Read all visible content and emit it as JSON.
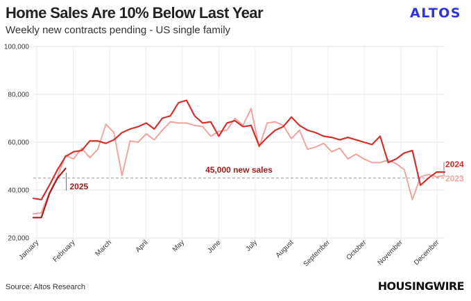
{
  "header": {
    "title": "Home Sales Are 10% Below Last Year",
    "subtitle": "Weekly new contracts pending - US single family",
    "brand": "ALTOS"
  },
  "footer": {
    "source": "Source: Altos Research",
    "publisher": "HOUSINGWIRE"
  },
  "colors": {
    "series_2024": "#d42f2a",
    "series_2023": "#f2a3a0",
    "series_2025": "#a81c1c",
    "reference": "#999999",
    "annotation": "#a81c1c"
  },
  "chart_data": {
    "type": "line",
    "title": "Home Sales Are 10% Below Last Year",
    "subtitle": "Weekly new contracts pending - US single family",
    "x_unit": "week of year",
    "xlim": [
      1,
      52
    ],
    "ylim": [
      20000,
      100000
    ],
    "y_ticks": [
      20000,
      40000,
      60000,
      80000,
      100000
    ],
    "y_tick_labels": [
      "20,000",
      "40,000",
      "60,000",
      "80,000",
      "100,000"
    ],
    "x_tick_labels": [
      "January",
      "February",
      "March",
      "April",
      "May",
      "June",
      "July",
      "August",
      "September",
      "October",
      "November",
      "December"
    ],
    "grid": true,
    "reference_line": {
      "y": 45000,
      "label": "45,000 new sales"
    },
    "series": [
      {
        "name": "2024",
        "values": [
          36500,
          36000,
          42000,
          48500,
          54000,
          56000,
          56500,
          60500,
          60500,
          59500,
          61000,
          64000,
          65500,
          66500,
          68000,
          65500,
          70000,
          71000,
          76500,
          77500,
          71000,
          68000,
          68500,
          62500,
          68000,
          69000,
          66500,
          67000,
          58500,
          62000,
          65000,
          66500,
          70500,
          67000,
          65000,
          64000,
          62500,
          62000,
          61000,
          62000,
          61000,
          60000,
          59000,
          62500,
          51500,
          53000,
          55500,
          56500,
          42000,
          45000,
          47500,
          47500
        ]
      },
      {
        "name": "2023",
        "values": [
          30000,
          30500,
          39000,
          45500,
          54500,
          53000,
          57500,
          53500,
          57000,
          67500,
          64000,
          46000,
          60500,
          60000,
          63500,
          61000,
          65000,
          68500,
          68000,
          68000,
          67000,
          66500,
          62500,
          64500,
          65000,
          70000,
          67000,
          74000,
          58000,
          68000,
          68500,
          67000,
          61500,
          65000,
          57000,
          58000,
          59500,
          56000,
          57500,
          53000,
          55000,
          53000,
          51500,
          51500,
          52500,
          51000,
          48500,
          36000,
          45500,
          46500,
          45500,
          46000
        ]
      },
      {
        "name": "2025",
        "values": [
          28500,
          28500,
          38500,
          45000,
          49000
        ]
      }
    ],
    "annotations": [
      "2025",
      "2024",
      "2023"
    ]
  }
}
